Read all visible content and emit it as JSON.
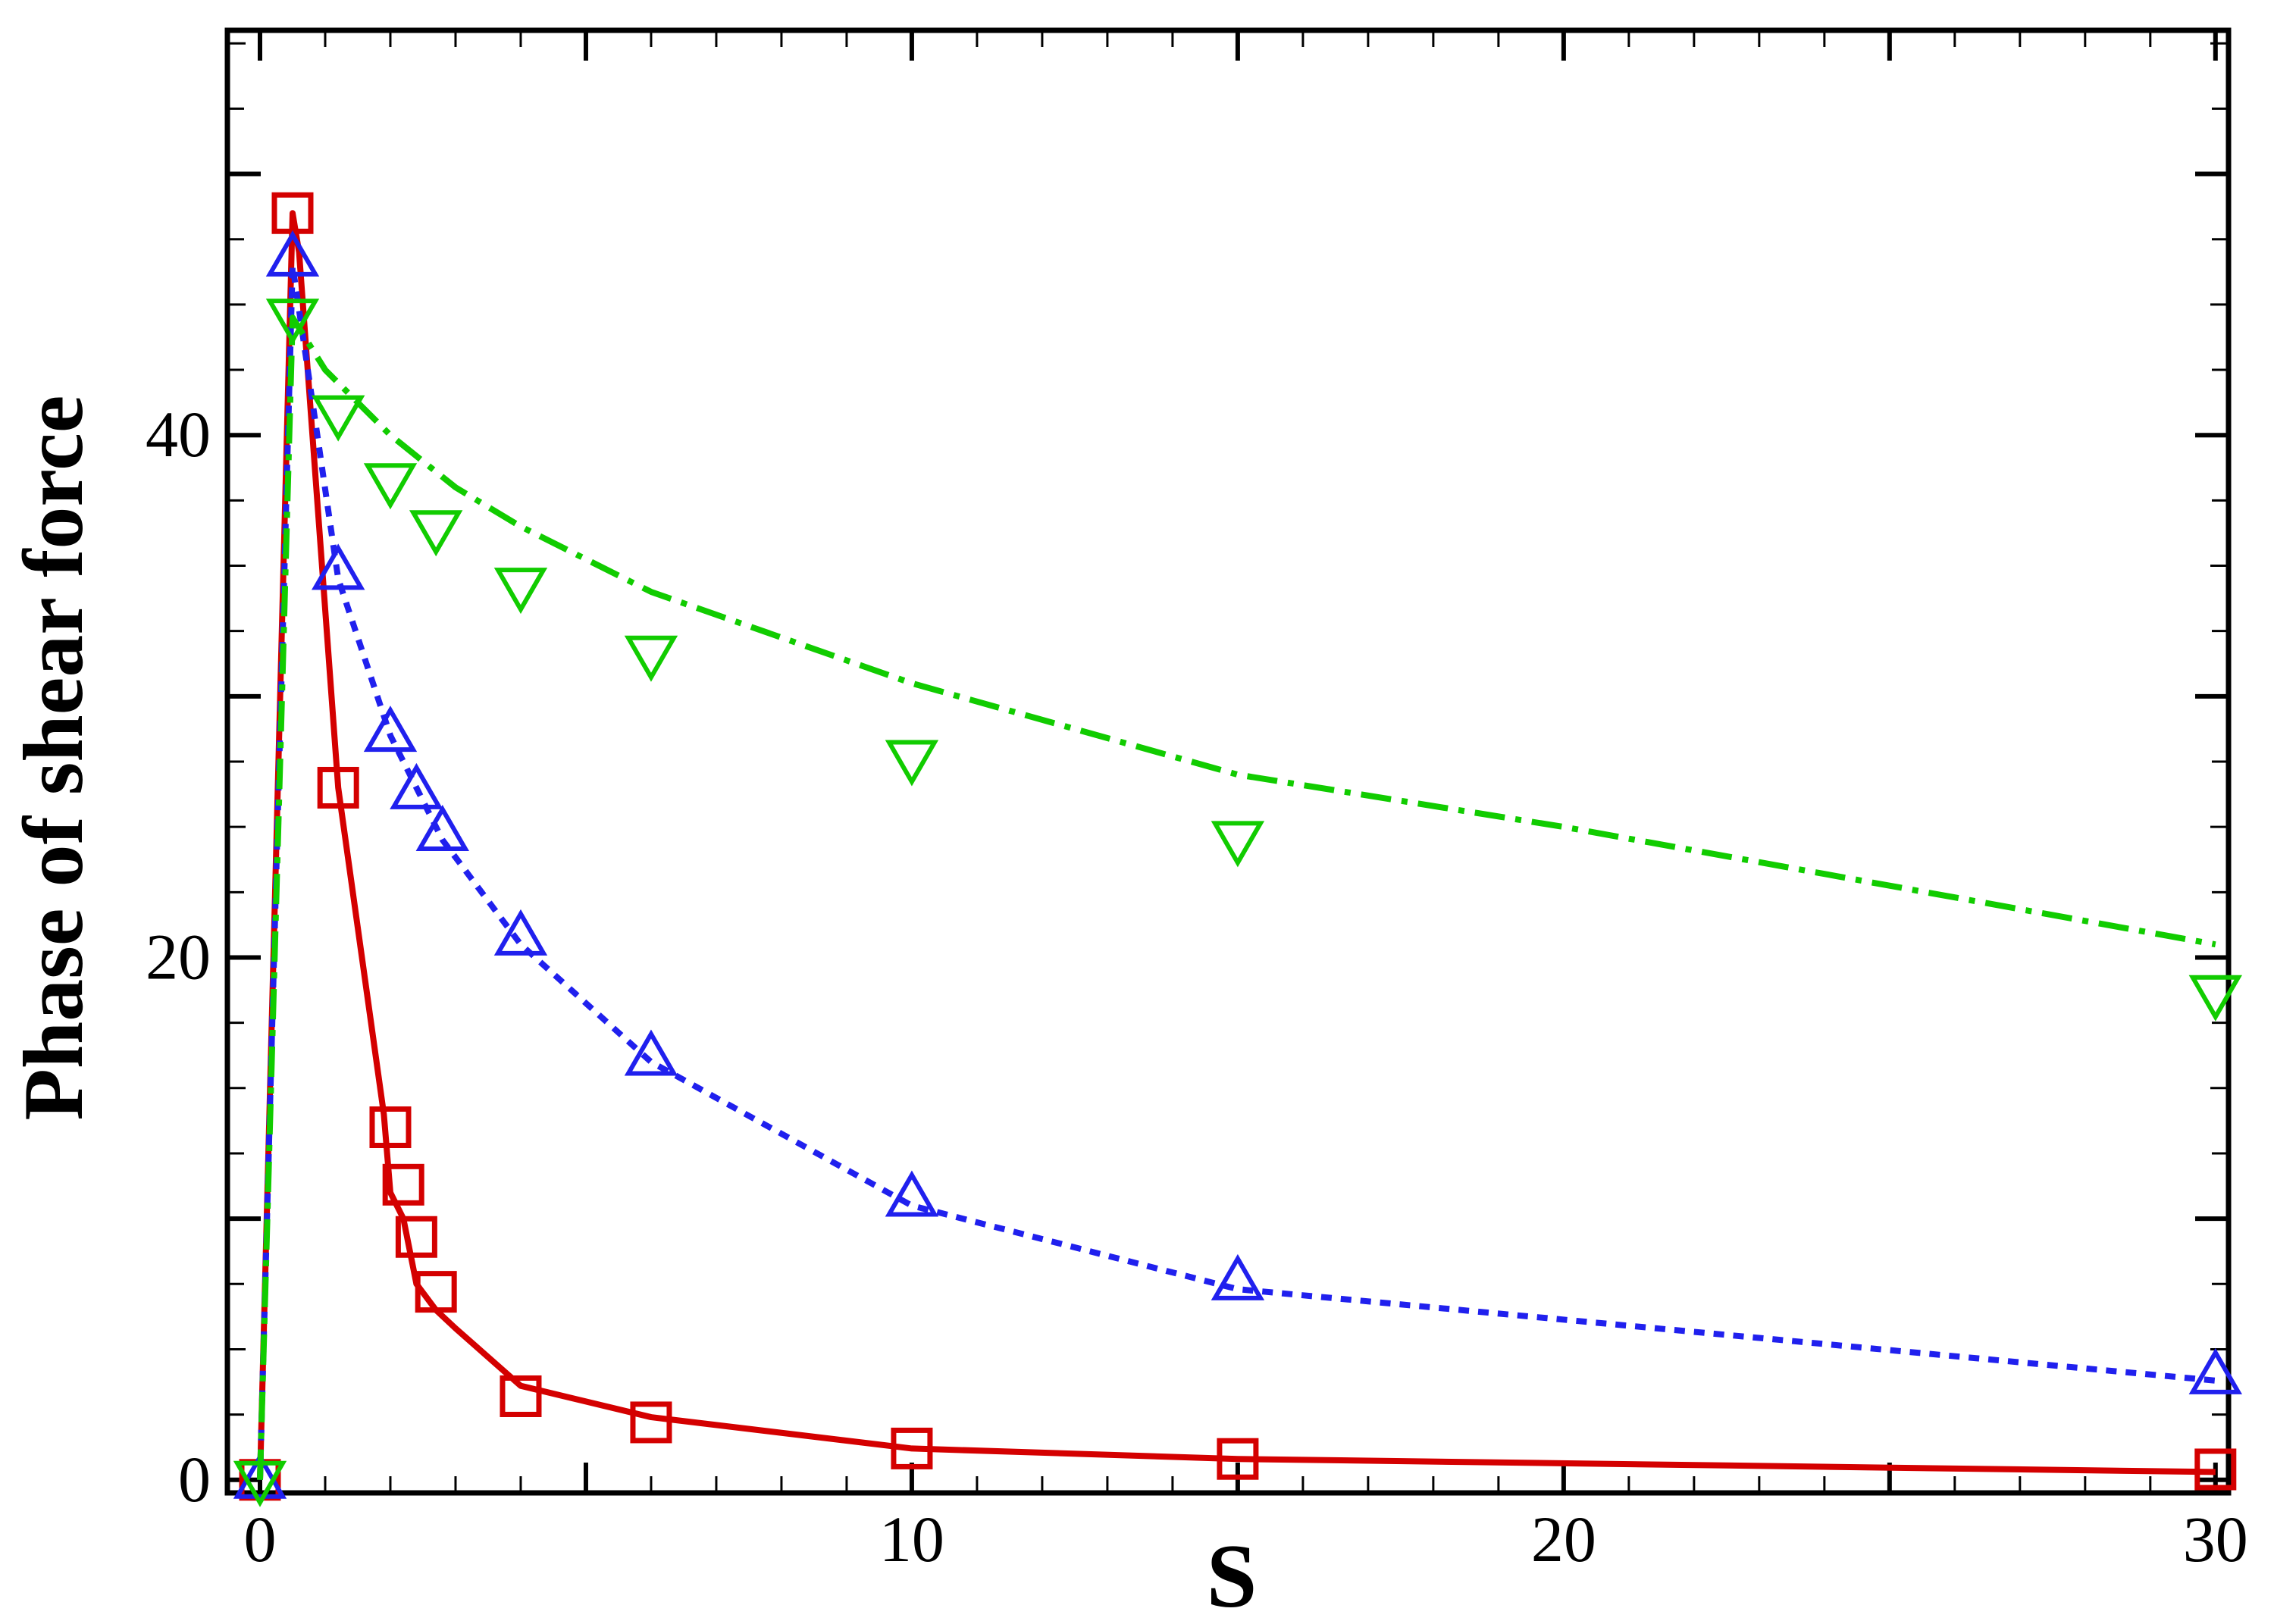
{
  "chart_data": {
    "type": "line",
    "title": "",
    "xlabel": "S",
    "ylabel": "Phase of shear force",
    "xlim": [
      -0.5,
      30.2
    ],
    "ylim": [
      -0.5,
      55.5
    ],
    "xticks": [
      0,
      10,
      20,
      30
    ],
    "yticks": [
      0,
      20,
      40
    ],
    "grid": false,
    "legend": "none",
    "series": [
      {
        "color": "#d40000",
        "line_style": "solid",
        "marker": "square",
        "line": {
          "x": [
            0,
            0.5,
            0.6,
            1.2,
            1.9,
            2.0,
            2.2,
            2.4,
            2.7,
            3,
            4,
            6,
            10,
            15,
            30
          ],
          "y": [
            0,
            48.5,
            47,
            26.5,
            14,
            11,
            10,
            7.5,
            6.5,
            5.8,
            3.6,
            2.4,
            1.2,
            0.8,
            0.3
          ]
        },
        "markers": {
          "x": [
            0,
            0.5,
            1.2,
            2.0,
            2.2,
            2.4,
            2.7,
            4,
            6,
            10,
            15,
            30
          ],
          "y": [
            0,
            48.5,
            26.5,
            13.5,
            11.3,
            9.3,
            7.2,
            3.2,
            2.2,
            1.2,
            0.8,
            0.4
          ]
        }
      },
      {
        "color": "#2020ee",
        "line_style": "dotted",
        "marker": "triangle-up",
        "line": {
          "x": [
            0,
            0.5,
            1.2,
            2.0,
            2.4,
            2.8,
            4,
            6,
            10,
            15,
            30
          ],
          "y": [
            0,
            46.5,
            34.5,
            28.5,
            26.5,
            24.5,
            20.5,
            16,
            10.5,
            7.3,
            3.8
          ]
        },
        "markers": {
          "x": [
            0,
            0.5,
            1.2,
            2.0,
            2.4,
            2.8,
            4,
            6,
            10,
            15,
            30
          ],
          "y": [
            0,
            46.8,
            34.8,
            28.6,
            26.4,
            24.8,
            20.8,
            16.2,
            10.8,
            7.6,
            4.0
          ]
        }
      },
      {
        "color": "#11cc00",
        "line_style": "dashdot",
        "marker": "triangle-down",
        "line": {
          "x": [
            0,
            0.5,
            1,
            2,
            3,
            4,
            6,
            10,
            15,
            20,
            30
          ],
          "y": [
            0,
            44.5,
            42.5,
            40,
            38,
            36.5,
            34,
            30.5,
            27,
            25,
            20.5
          ]
        },
        "markers": {
          "x": [
            0,
            0.5,
            1.2,
            2.0,
            2.7,
            4,
            6,
            10,
            15,
            30
          ],
          "y": [
            0,
            44.5,
            40.8,
            38.2,
            36.4,
            34.2,
            31.6,
            27.6,
            24.5,
            18.6
          ]
        }
      }
    ]
  }
}
